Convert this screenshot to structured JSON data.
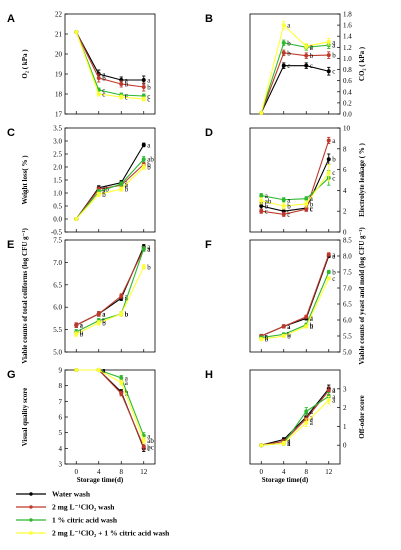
{
  "figure": {
    "xlabel": "Storage time(d)",
    "legend": [
      "Water wash",
      "2 mg L⁻¹ClO₂ wash",
      "1 % citric acid wash",
      "2 mg L⁻¹ClO₂ + 1 % citric acid wash"
    ],
    "series_colors": [
      "#000000",
      "#c0392b",
      "#2eb82e",
      "#ffff33"
    ]
  },
  "chart_data": [
    {
      "panel": "A",
      "type": "line",
      "ylabel": "O₂ ( kPa )",
      "x": [
        0,
        4,
        8,
        12
      ],
      "ylim": [
        17,
        22
      ],
      "yticks": [
        17,
        18,
        19,
        20,
        21,
        22
      ],
      "grid": false,
      "series": [
        {
          "name": "Water wash",
          "values": [
            21.1,
            19.0,
            18.7,
            18.7
          ],
          "err": [
            0.05,
            0.2,
            0.15,
            0.2
          ],
          "sig": [
            "",
            "a",
            "a",
            "a"
          ]
        },
        {
          "name": "2 mg L⁻¹ClO₂ wash",
          "values": [
            21.1,
            18.8,
            18.5,
            18.35
          ],
          "err": [
            0.05,
            0.2,
            0.15,
            0.2
          ],
          "sig": [
            "",
            "b",
            "b",
            "b"
          ]
        },
        {
          "name": "1 % citric acid wash",
          "values": [
            21.1,
            18.2,
            17.95,
            17.9
          ],
          "err": [
            0.05,
            0.1,
            0.1,
            0.1
          ],
          "sig": [
            "",
            "c",
            "c",
            "c"
          ]
        },
        {
          "name": "2 mg L⁻¹ClO₂ + 1 % citric acid wash",
          "values": [
            21.1,
            18.0,
            17.85,
            17.75
          ],
          "err": [
            0.05,
            0.1,
            0.1,
            0.1
          ],
          "sig": [
            "",
            "c",
            "c",
            "c"
          ]
        }
      ]
    },
    {
      "panel": "B",
      "type": "line",
      "ylabel": "CO₂ ( kPa )",
      "x": [
        0,
        4,
        8,
        12
      ],
      "ylim": [
        0,
        1.8
      ],
      "yticks": [
        0.0,
        0.2,
        0.4,
        0.6,
        0.8,
        1.0,
        1.2,
        1.4,
        1.6,
        1.8
      ],
      "grid": false,
      "series": [
        {
          "name": "Water wash",
          "values": [
            0.02,
            0.87,
            0.87,
            0.77
          ],
          "err": [
            0,
            0.05,
            0.05,
            0.07
          ],
          "sig": [
            "",
            "c",
            "c",
            "c"
          ]
        },
        {
          "name": "2 mg L⁻¹ClO₂ wash",
          "values": [
            0.02,
            1.1,
            1.05,
            1.06
          ],
          "err": [
            0,
            0.05,
            0.05,
            0.06
          ],
          "sig": [
            "",
            "b",
            "b",
            "b"
          ]
        },
        {
          "name": "1 % citric acid wash",
          "values": [
            0.02,
            1.28,
            1.2,
            1.24
          ],
          "err": [
            0,
            0.05,
            0.05,
            0.06
          ],
          "sig": [
            "",
            "b",
            "a",
            "a"
          ]
        },
        {
          "name": "2 mg L⁻¹ClO₂ + 1 % citric acid wash",
          "values": [
            0.02,
            1.6,
            1.22,
            1.3
          ],
          "err": [
            0,
            0.07,
            0.05,
            0.06
          ],
          "sig": [
            "",
            "a",
            "a",
            "a"
          ]
        }
      ]
    },
    {
      "panel": "C",
      "type": "line",
      "ylabel": "Weight loss( % )",
      "x": [
        0,
        4,
        8,
        12
      ],
      "ylim": [
        -0.5,
        3.5
      ],
      "yticks": [
        -0.5,
        0.0,
        0.5,
        1.0,
        1.5,
        2.0,
        2.5,
        3.0,
        3.5
      ],
      "grid": false,
      "series": [
        {
          "name": "Water wash",
          "values": [
            0.0,
            1.2,
            1.4,
            2.85
          ],
          "err": [
            0,
            0.08,
            0.08,
            0.07
          ],
          "sig": [
            "",
            "a",
            "a",
            "a"
          ]
        },
        {
          "name": "2 mg L⁻¹ClO₂ wash",
          "values": [
            0.0,
            1.15,
            1.3,
            2.1
          ],
          "err": [
            0,
            0.08,
            0.08,
            0.08
          ],
          "sig": [
            "",
            "ab",
            "a",
            "b"
          ]
        },
        {
          "name": "1 % citric acid wash",
          "values": [
            0.0,
            1.05,
            1.35,
            2.3
          ],
          "err": [
            0,
            0.08,
            0.08,
            0.1
          ],
          "sig": [
            "",
            "a",
            "a",
            "ab"
          ]
        },
        {
          "name": "2 mg L⁻¹ClO₂ + 1 % citric acid wash",
          "values": [
            0.0,
            0.95,
            1.15,
            2.0
          ],
          "err": [
            0,
            0.08,
            0.08,
            0.1
          ],
          "sig": [
            "",
            "b",
            "b",
            "b"
          ]
        }
      ]
    },
    {
      "panel": "D",
      "type": "line",
      "ylabel": "Electrolyte leakage ( % )",
      "x": [
        0,
        4,
        8,
        12
      ],
      "ylim": [
        0,
        10
      ],
      "yticks": [
        0,
        2,
        4,
        6,
        8,
        10
      ],
      "grid": false,
      "series": [
        {
          "name": "Water wash",
          "values": [
            2.5,
            2.0,
            2.3,
            7.0
          ],
          "err": [
            0.3,
            0.2,
            0.3,
            0.5
          ],
          "sig": [
            "b",
            "c",
            "c",
            "b"
          ]
        },
        {
          "name": "2 mg L⁻¹ClO₂ wash",
          "values": [
            2.0,
            1.7,
            2.2,
            8.8
          ],
          "err": [
            0.2,
            0.2,
            0.2,
            0.3
          ],
          "sig": [
            "c",
            "c",
            "c",
            "a"
          ]
        },
        {
          "name": "1 % citric acid wash",
          "values": [
            3.5,
            3.1,
            3.2,
            5.2
          ],
          "err": [
            0.2,
            0.2,
            0.2,
            0.7
          ],
          "sig": [
            "a",
            "a",
            "a",
            "c"
          ]
        },
        {
          "name": "2 mg L⁻¹ClO₂ + 1 % citric acid wash",
          "values": [
            3.0,
            2.5,
            2.7,
            5.7
          ],
          "err": [
            0.3,
            0.3,
            0.3,
            0.8
          ],
          "sig": [
            "ab",
            "b",
            "b",
            "c"
          ]
        }
      ]
    },
    {
      "panel": "E",
      "type": "line",
      "ylabel": "Viable counts of total coliforms (log CFU g⁻¹)",
      "x": [
        0,
        4,
        8,
        12
      ],
      "ylim": [
        5.0,
        7.5
      ],
      "yticks": [
        5.0,
        5.5,
        6.0,
        6.5,
        7.0,
        7.5
      ],
      "grid": false,
      "series": [
        {
          "name": "Water wash",
          "values": [
            5.6,
            5.85,
            6.2,
            7.35
          ],
          "err": [
            0.05,
            0.05,
            0.05,
            0.05
          ],
          "sig": [
            "a",
            "a",
            "a",
            "a"
          ]
        },
        {
          "name": "2 mg L⁻¹ClO₂ wash",
          "values": [
            5.6,
            5.85,
            6.25,
            7.3
          ],
          "err": [
            0.05,
            0.05,
            0.05,
            0.05
          ],
          "sig": [
            "a",
            "a",
            "a",
            "a"
          ]
        },
        {
          "name": "1 % citric acid wash",
          "values": [
            5.45,
            5.7,
            5.85,
            7.3
          ],
          "err": [
            0.05,
            0.05,
            0.05,
            0.05
          ],
          "sig": [
            "b",
            "b",
            "b",
            "a"
          ]
        },
        {
          "name": "2 mg L⁻¹ClO₂ + 1 % citric acid wash",
          "values": [
            5.4,
            5.65,
            5.85,
            6.9
          ],
          "err": [
            0.05,
            0.05,
            0.05,
            0.05
          ],
          "sig": [
            "b",
            "b",
            "b",
            "b"
          ]
        }
      ]
    },
    {
      "panel": "F",
      "type": "line",
      "ylabel": "Viable counts of yeast and mold (log CFU g⁻¹)",
      "x": [
        0,
        4,
        8,
        12
      ],
      "ylim": [
        5.0,
        8.5
      ],
      "yticks": [
        5.0,
        5.5,
        6.0,
        6.5,
        7.0,
        7.5,
        8.0,
        8.5
      ],
      "grid": false,
      "series": [
        {
          "name": "Water wash",
          "values": [
            5.5,
            5.8,
            6.05,
            8.0
          ],
          "err": [
            0.05,
            0.05,
            0.05,
            0.05
          ],
          "sig": [
            "a",
            "a",
            "a",
            "a"
          ]
        },
        {
          "name": "2 mg L⁻¹ClO₂ wash",
          "values": [
            5.5,
            5.8,
            6.1,
            8.05
          ],
          "err": [
            0.05,
            0.05,
            0.05,
            0.05
          ],
          "sig": [
            "a",
            "a",
            "a",
            "a"
          ]
        },
        {
          "name": "1 % citric acid wash",
          "values": [
            5.45,
            5.55,
            5.85,
            7.5
          ],
          "err": [
            0.05,
            0.05,
            0.05,
            0.05
          ],
          "sig": [
            "b",
            "b",
            "b",
            "b"
          ]
        },
        {
          "name": "2 mg L⁻¹ClO₂ + 1 % citric acid wash",
          "values": [
            5.4,
            5.5,
            5.8,
            7.3
          ],
          "err": [
            0.05,
            0.05,
            0.05,
            0.05
          ],
          "sig": [
            "b",
            "b",
            "b",
            "c"
          ]
        }
      ]
    },
    {
      "panel": "G",
      "type": "line",
      "ylabel": "Visual quality score",
      "x": [
        0,
        4,
        8,
        12
      ],
      "ylim": [
        3,
        9
      ],
      "yticks": [
        3,
        4,
        5,
        6,
        7,
        8,
        9
      ],
      "grid": false,
      "series": [
        {
          "name": "Water wash",
          "values": [
            9.0,
            9.0,
            7.6,
            4.0
          ],
          "err": [
            0,
            0.1,
            0.15,
            0.2
          ],
          "sig": [
            "",
            "a",
            "b",
            "c"
          ]
        },
        {
          "name": "2 mg L⁻¹ClO₂ wash",
          "values": [
            9.0,
            9.0,
            7.5,
            4.1
          ],
          "err": [
            0,
            0.1,
            0.15,
            0.2
          ],
          "sig": [
            "",
            "a",
            "b",
            "bc"
          ]
        },
        {
          "name": "1 % citric acid wash",
          "values": [
            9.0,
            9.0,
            8.5,
            4.8
          ],
          "err": [
            0,
            0.1,
            0.15,
            0.2
          ],
          "sig": [
            "",
            "a",
            "a",
            "a"
          ]
        },
        {
          "name": "2 mg L⁻¹ClO₂ + 1 % citric acid wash",
          "values": [
            9.0,
            9.0,
            8.2,
            4.5
          ],
          "err": [
            0,
            0.1,
            0.15,
            0.2
          ],
          "sig": [
            "",
            "a",
            "a",
            "ab"
          ]
        }
      ]
    },
    {
      "panel": "H",
      "type": "line",
      "ylabel": "Off-odor score",
      "x": [
        0,
        4,
        8,
        12
      ],
      "ylim": [
        -1,
        4
      ],
      "yticks": [
        0,
        1,
        2,
        3
      ],
      "grid": false,
      "series": [
        {
          "name": "Water wash",
          "values": [
            0,
            0.3,
            1.5,
            3.0
          ],
          "err": [
            0,
            0.1,
            0.2,
            0.2
          ],
          "sig": [
            "",
            "a",
            "a",
            "a"
          ]
        },
        {
          "name": "2 mg L⁻¹ClO₂ wash",
          "values": [
            0,
            0.2,
            1.4,
            2.9
          ],
          "err": [
            0,
            0.1,
            0.2,
            0.2
          ],
          "sig": [
            "",
            "a",
            "a",
            "a"
          ]
        },
        {
          "name": "1 % citric acid wash",
          "values": [
            0,
            0.1,
            1.8,
            2.6
          ],
          "err": [
            0,
            0.1,
            0.2,
            0.2
          ],
          "sig": [
            "",
            "a",
            "a",
            "a"
          ]
        },
        {
          "name": "2 mg L⁻¹ClO₂ + 1 % citric acid wash",
          "values": [
            0,
            0.1,
            1.2,
            2.4
          ],
          "err": [
            0,
            0.1,
            0.2,
            0.2
          ],
          "sig": [
            "",
            "a",
            "a",
            "a"
          ]
        }
      ]
    }
  ]
}
